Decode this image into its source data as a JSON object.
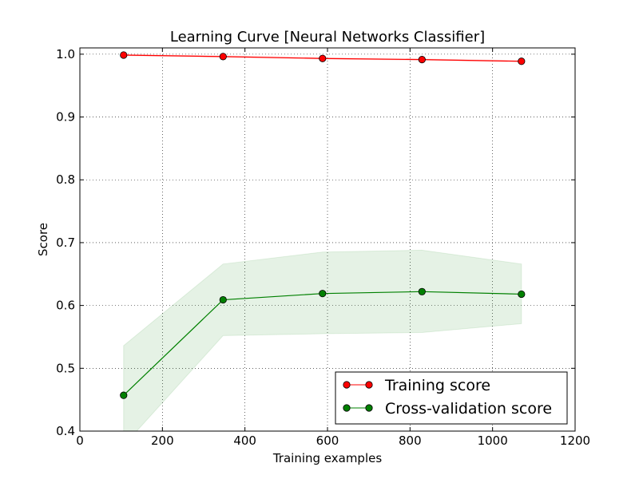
{
  "chart_data": {
    "type": "line",
    "title": "Learning Curve [Neural Networks Classifier]",
    "xlabel": "Training examples",
    "ylabel": "Score",
    "xlim": [
      0,
      1200
    ],
    "ylim": [
      0.4,
      1.01
    ],
    "xticks": [
      0,
      200,
      400,
      600,
      800,
      1000,
      1200
    ],
    "xtick_labels": [
      "0",
      "200",
      "400",
      "600",
      "800",
      "1000",
      "1200"
    ],
    "yticks": [
      0.4,
      0.5,
      0.6,
      0.7,
      0.8,
      0.9,
      1.0
    ],
    "ytick_labels": [
      "0.4",
      "0.5",
      "0.6",
      "0.7",
      "0.8",
      "0.9",
      "1.0"
    ],
    "grid": true,
    "legend_position": "bottom-right",
    "x": [
      106,
      347,
      588,
      829,
      1070
    ],
    "series": [
      {
        "name": "Training score",
        "color": "#ff0000",
        "values": [
          0.9986,
          0.9962,
          0.9932,
          0.9914,
          0.9887
        ],
        "band_lower": [
          0.9976,
          0.9952,
          0.9922,
          0.9904,
          0.9877
        ],
        "band_upper": [
          0.9996,
          0.9972,
          0.9942,
          0.9924,
          0.9897
        ]
      },
      {
        "name": "Cross-validation score",
        "color": "#008000",
        "values": [
          0.457,
          0.609,
          0.619,
          0.622,
          0.618
        ],
        "band_lower": [
          0.377,
          0.552,
          0.555,
          0.557,
          0.571
        ],
        "band_upper": [
          0.536,
          0.666,
          0.685,
          0.688,
          0.666
        ]
      }
    ]
  }
}
